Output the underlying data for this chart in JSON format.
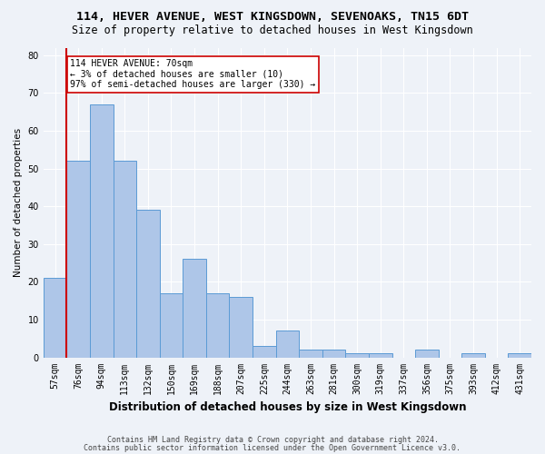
{
  "title": "114, HEVER AVENUE, WEST KINGSDOWN, SEVENOAKS, TN15 6DT",
  "subtitle": "Size of property relative to detached houses in West Kingsdown",
  "xlabel": "Distribution of detached houses by size in West Kingsdown",
  "ylabel": "Number of detached properties",
  "categories": [
    "57sqm",
    "76sqm",
    "94sqm",
    "113sqm",
    "132sqm",
    "150sqm",
    "169sqm",
    "188sqm",
    "207sqm",
    "225sqm",
    "244sqm",
    "263sqm",
    "281sqm",
    "300sqm",
    "319sqm",
    "337sqm",
    "356sqm",
    "375sqm",
    "393sqm",
    "412sqm",
    "431sqm"
  ],
  "values": [
    21,
    52,
    67,
    52,
    39,
    17,
    26,
    17,
    16,
    3,
    7,
    2,
    2,
    1,
    1,
    0,
    2,
    0,
    1,
    0,
    1
  ],
  "bar_color": "#aec6e8",
  "bar_edge_color": "#5b9bd5",
  "marker_line_color": "#cc0000",
  "annotation_text": "114 HEVER AVENUE: 70sqm\n← 3% of detached houses are smaller (10)\n97% of semi-detached houses are larger (330) →",
  "annotation_box_color": "#ffffff",
  "annotation_box_edge_color": "#cc0000",
  "ylim": [
    0,
    82
  ],
  "yticks": [
    0,
    10,
    20,
    30,
    40,
    50,
    60,
    70,
    80
  ],
  "footer1": "Contains HM Land Registry data © Crown copyright and database right 2024.",
  "footer2": "Contains public sector information licensed under the Open Government Licence v3.0.",
  "background_color": "#eef2f8",
  "title_fontsize": 9.5,
  "subtitle_fontsize": 8.5,
  "xlabel_fontsize": 8.5,
  "ylabel_fontsize": 7.5,
  "tick_fontsize": 7,
  "annotation_fontsize": 7,
  "footer_fontsize": 6
}
